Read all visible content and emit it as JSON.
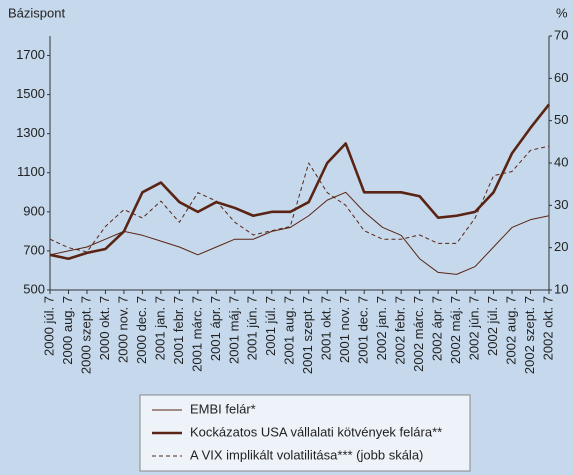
{
  "chart_data": {
    "type": "line",
    "y_label": "Bázispont",
    "y2_label": "%",
    "categories": [
      "2000 júl. 7",
      "2000 aug. 7",
      "2000 szept. 7",
      "2000 okt. 7",
      "2000 nov. 7",
      "2000 dec. 7",
      "2001 jan. 7",
      "2001 febr. 7",
      "2001 márc. 7",
      "2001 ápr. 7",
      "2001 máj. 7",
      "2001 jún. 7",
      "2001 júl. 7",
      "2001 aug. 7",
      "2001 szept. 7",
      "2001 okt. 7",
      "2001 nov. 7",
      "2001 dec. 7",
      "2002 jan. 7",
      "2002 febr. 7",
      "2002 márc. 7",
      "2002 ápr. 7",
      "2002 máj. 7",
      "2002 jún. 7",
      "2002 júl. 7",
      "2002 aug. 7",
      "2002 szept. 7",
      "2002 okt. 7"
    ],
    "series": [
      {
        "name": "EMBI felár*",
        "color": "#5a2414",
        "style": "thin",
        "values": [
          680,
          700,
          720,
          760,
          800,
          780,
          750,
          720,
          680,
          720,
          760,
          760,
          800,
          820,
          880,
          960,
          1000,
          900,
          820,
          780,
          660,
          590,
          580,
          620,
          720,
          820,
          860,
          880
        ]
      },
      {
        "name": "Kockázatos USA vállalati kötvények felára**",
        "color": "#5a2414",
        "style": "thick",
        "values": [
          680,
          660,
          690,
          710,
          800,
          1000,
          1050,
          950,
          900,
          950,
          920,
          880,
          900,
          900,
          950,
          1150,
          1250,
          1000,
          1000,
          1000,
          980,
          870,
          880,
          900,
          1000,
          1200,
          1330,
          1450
        ]
      },
      {
        "name": "A VIX implikált volatilitása*** (jobb skála)",
        "color": "#5a2414",
        "style": "dashed",
        "axis": "y2",
        "values": [
          22,
          20,
          19,
          25,
          29,
          27,
          31,
          26,
          33,
          31,
          26,
          23,
          24,
          25,
          40,
          33,
          30,
          24,
          22,
          22,
          23,
          21,
          21,
          27,
          37,
          38,
          43,
          44
        ]
      }
    ],
    "ylim": [
      500,
      1800
    ],
    "yticks": [
      500,
      700,
      900,
      1100,
      1300,
      1500,
      1700
    ],
    "y2lim": [
      10,
      70
    ],
    "y2ticks": [
      10,
      20,
      30,
      40,
      50,
      60,
      70
    ]
  }
}
